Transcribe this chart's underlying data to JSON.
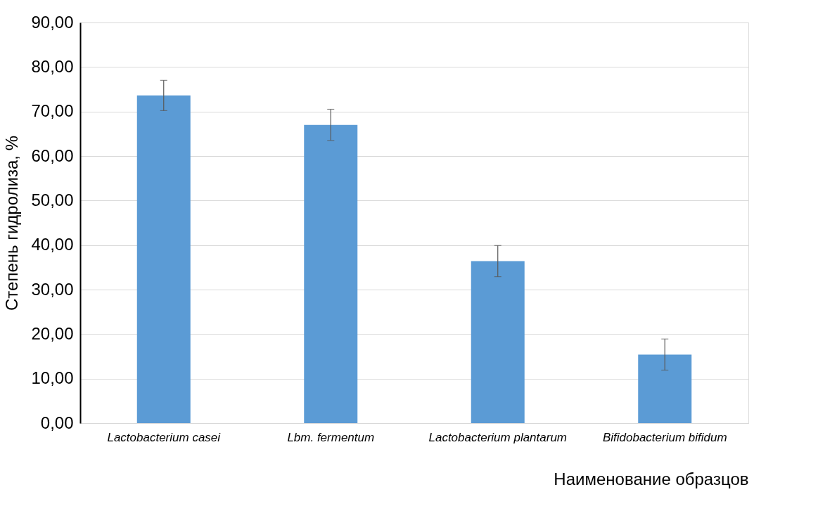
{
  "chart_data": {
    "type": "bar",
    "xlabel": "Наименование образцов",
    "ylabel": "Степень гидролиза, %",
    "categories": [
      "Lactobacterium casei",
      "Lbm. fermentum",
      "Lactobacterium plantarum",
      "Bifidobacterium bifidum"
    ],
    "values": [
      73.6,
      67.0,
      36.4,
      15.4
    ],
    "errors": [
      3.4,
      3.5,
      3.5,
      3.5
    ],
    "color": "#5b9bd5",
    "ylim": [
      0,
      90
    ],
    "yticks": [
      {
        "value": 0,
        "label": "0,00"
      },
      {
        "value": 10,
        "label": "10,00"
      },
      {
        "value": 20,
        "label": "20,00"
      },
      {
        "value": 30,
        "label": "30,00"
      },
      {
        "value": 40,
        "label": "40,00"
      },
      {
        "value": 50,
        "label": "50,00"
      },
      {
        "value": 60,
        "label": "60,00"
      },
      {
        "value": 70,
        "label": "70,00"
      },
      {
        "value": 80,
        "label": "80,00"
      },
      {
        "value": 90,
        "label": "90,00"
      }
    ],
    "grid": "y"
  }
}
